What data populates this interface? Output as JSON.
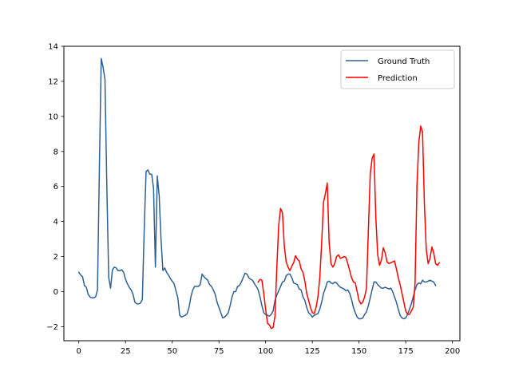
{
  "chart_data": {
    "type": "line",
    "title": "",
    "xlabel": "",
    "ylabel": "",
    "xlim": [
      -8,
      204
    ],
    "ylim": [
      -2.8,
      14
    ],
    "xticks": [
      0,
      25,
      50,
      75,
      100,
      125,
      150,
      175,
      200
    ],
    "yticks": [
      -2,
      0,
      2,
      4,
      6,
      8,
      10,
      12,
      14
    ],
    "xtick_labels": [
      "0",
      "25",
      "50",
      "75",
      "100",
      "125",
      "150",
      "175",
      "200"
    ],
    "ytick_labels": [
      "−2",
      "0",
      "2",
      "4",
      "6",
      "8",
      "10",
      "12",
      "14"
    ],
    "grid": false,
    "legend": {
      "position": "upper right"
    },
    "series": [
      {
        "name": "Ground Truth",
        "color": "#2e6193",
        "points": [
          [
            0,
            1.1
          ],
          [
            1,
            0.95
          ],
          [
            2,
            0.85
          ],
          [
            3,
            0.35
          ],
          [
            4,
            0.25
          ],
          [
            5,
            -0.15
          ],
          [
            6,
            -0.3
          ],
          [
            7,
            -0.35
          ],
          [
            8,
            -0.35
          ],
          [
            9,
            -0.3
          ],
          [
            10,
            0.1
          ],
          [
            11,
            7.0
          ],
          [
            12,
            13.3
          ],
          [
            13,
            12.8
          ],
          [
            14,
            12.1
          ],
          [
            15,
            6.0
          ],
          [
            16,
            0.8
          ],
          [
            17,
            0.2
          ],
          [
            18,
            1.25
          ],
          [
            19,
            1.4
          ],
          [
            20,
            1.35
          ],
          [
            21,
            1.2
          ],
          [
            22,
            1.2
          ],
          [
            23,
            1.25
          ],
          [
            24,
            1.1
          ],
          [
            25,
            0.7
          ],
          [
            26,
            0.45
          ],
          [
            27,
            0.25
          ],
          [
            28,
            0.1
          ],
          [
            29,
            -0.15
          ],
          [
            30,
            -0.6
          ],
          [
            31,
            -0.7
          ],
          [
            32,
            -0.7
          ],
          [
            33,
            -0.65
          ],
          [
            34,
            -0.45
          ],
          [
            35,
            3.5
          ],
          [
            36,
            6.85
          ],
          [
            37,
            6.95
          ],
          [
            38,
            6.7
          ],
          [
            39,
            6.7
          ],
          [
            40,
            5.9
          ],
          [
            41,
            1.4
          ],
          [
            42,
            6.6
          ],
          [
            43,
            5.5
          ],
          [
            44,
            3.0
          ],
          [
            45,
            1.2
          ],
          [
            46,
            1.35
          ],
          [
            47,
            1.1
          ],
          [
            48,
            0.95
          ],
          [
            49,
            0.75
          ],
          [
            50,
            0.6
          ],
          [
            51,
            0.45
          ],
          [
            52,
            0.05
          ],
          [
            53,
            -0.35
          ],
          [
            54,
            -1.35
          ],
          [
            55,
            -1.45
          ],
          [
            56,
            -1.4
          ],
          [
            57,
            -1.35
          ],
          [
            58,
            -1.25
          ],
          [
            59,
            -0.9
          ],
          [
            60,
            -0.3
          ],
          [
            61,
            0.1
          ],
          [
            62,
            0.3
          ],
          [
            63,
            0.3
          ],
          [
            64,
            0.3
          ],
          [
            65,
            0.4
          ],
          [
            66,
            1.0
          ],
          [
            67,
            0.85
          ],
          [
            68,
            0.75
          ],
          [
            69,
            0.65
          ],
          [
            70,
            0.4
          ],
          [
            71,
            0.3
          ],
          [
            72,
            0.1
          ],
          [
            73,
            -0.15
          ],
          [
            74,
            -0.6
          ],
          [
            75,
            -0.9
          ],
          [
            76,
            -1.2
          ],
          [
            77,
            -1.5
          ],
          [
            78,
            -1.45
          ],
          [
            79,
            -1.35
          ],
          [
            80,
            -1.2
          ],
          [
            81,
            -0.8
          ],
          [
            82,
            -0.3
          ],
          [
            83,
            0.0
          ],
          [
            84,
            0.0
          ],
          [
            85,
            0.3
          ],
          [
            86,
            0.35
          ],
          [
            87,
            0.55
          ],
          [
            88,
            0.8
          ],
          [
            89,
            1.05
          ],
          [
            90,
            1.0
          ],
          [
            91,
            0.8
          ],
          [
            92,
            0.7
          ],
          [
            93,
            0.65
          ],
          [
            94,
            0.45
          ],
          [
            95,
            0.3
          ],
          [
            96,
            0.1
          ],
          [
            97,
            -0.3
          ],
          [
            98,
            -0.8
          ],
          [
            99,
            -1.2
          ],
          [
            100,
            -1.3
          ],
          [
            101,
            -1.35
          ],
          [
            102,
            -1.4
          ],
          [
            103,
            -1.3
          ],
          [
            104,
            -1.1
          ],
          [
            105,
            -0.5
          ],
          [
            106,
            -0.2
          ],
          [
            107,
            0.05
          ],
          [
            108,
            0.3
          ],
          [
            109,
            0.55
          ],
          [
            110,
            0.6
          ],
          [
            111,
            0.9
          ],
          [
            112,
            1.0
          ],
          [
            113,
            1.0
          ],
          [
            114,
            0.8
          ],
          [
            115,
            0.5
          ],
          [
            116,
            0.45
          ],
          [
            117,
            0.4
          ],
          [
            118,
            0.15
          ],
          [
            119,
            0.1
          ],
          [
            120,
            -0.3
          ],
          [
            121,
            -0.5
          ],
          [
            122,
            -0.9
          ],
          [
            123,
            -1.2
          ],
          [
            124,
            -1.3
          ],
          [
            125,
            -1.45
          ],
          [
            126,
            -1.35
          ],
          [
            127,
            -1.3
          ],
          [
            128,
            -1.25
          ],
          [
            129,
            -1.0
          ],
          [
            130,
            -0.6
          ],
          [
            131,
            -0.1
          ],
          [
            132,
            0.2
          ],
          [
            133,
            0.55
          ],
          [
            134,
            0.6
          ],
          [
            135,
            0.5
          ],
          [
            136,
            0.45
          ],
          [
            137,
            0.55
          ],
          [
            138,
            0.5
          ],
          [
            139,
            0.35
          ],
          [
            140,
            0.25
          ],
          [
            141,
            0.2
          ],
          [
            142,
            0.15
          ],
          [
            143,
            0.05
          ],
          [
            144,
            0.1
          ],
          [
            145,
            -0.1
          ],
          [
            146,
            -0.45
          ],
          [
            147,
            -0.9
          ],
          [
            148,
            -1.2
          ],
          [
            149,
            -1.45
          ],
          [
            150,
            -1.55
          ],
          [
            151,
            -1.55
          ],
          [
            152,
            -1.5
          ],
          [
            153,
            -1.3
          ],
          [
            154,
            -1.15
          ],
          [
            155,
            -0.8
          ],
          [
            156,
            -0.35
          ],
          [
            157,
            0.1
          ],
          [
            158,
            0.55
          ],
          [
            159,
            0.55
          ],
          [
            160,
            0.4
          ],
          [
            161,
            0.3
          ],
          [
            162,
            0.2
          ],
          [
            163,
            0.2
          ],
          [
            164,
            0.25
          ],
          [
            165,
            0.2
          ],
          [
            166,
            0.15
          ],
          [
            167,
            0.2
          ],
          [
            168,
            0.0
          ],
          [
            169,
            -0.3
          ],
          [
            170,
            -0.6
          ],
          [
            171,
            -1.0
          ],
          [
            172,
            -1.35
          ],
          [
            173,
            -1.5
          ],
          [
            174,
            -1.55
          ],
          [
            175,
            -1.5
          ],
          [
            176,
            -1.3
          ],
          [
            177,
            -1.0
          ],
          [
            178,
            -0.7
          ],
          [
            179,
            -0.3
          ],
          [
            180,
            0.1
          ],
          [
            181,
            0.4
          ],
          [
            182,
            0.5
          ],
          [
            183,
            0.45
          ],
          [
            184,
            0.65
          ],
          [
            185,
            0.55
          ],
          [
            186,
            0.55
          ],
          [
            187,
            0.6
          ],
          [
            188,
            0.65
          ],
          [
            189,
            0.6
          ],
          [
            190,
            0.55
          ],
          [
            191,
            0.35
          ]
        ]
      },
      {
        "name": "Prediction",
        "color": "#ff0000",
        "points": [
          [
            96,
            0.55
          ],
          [
            97,
            0.7
          ],
          [
            98,
            0.65
          ],
          [
            99,
            -0.1
          ],
          [
            100,
            -1.0
          ],
          [
            101,
            -1.8
          ],
          [
            102,
            -1.9
          ],
          [
            103,
            -2.1
          ],
          [
            104,
            -2.05
          ],
          [
            105,
            -1.4
          ],
          [
            106,
            1.4
          ],
          [
            107,
            3.8
          ],
          [
            108,
            4.75
          ],
          [
            109,
            4.5
          ],
          [
            110,
            2.6
          ],
          [
            111,
            1.7
          ],
          [
            112,
            1.4
          ],
          [
            113,
            1.2
          ],
          [
            114,
            1.45
          ],
          [
            115,
            1.65
          ],
          [
            116,
            2.05
          ],
          [
            117,
            1.85
          ],
          [
            118,
            1.75
          ],
          [
            119,
            1.3
          ],
          [
            120,
            1.1
          ],
          [
            121,
            0.6
          ],
          [
            122,
            -0.1
          ],
          [
            123,
            -0.5
          ],
          [
            124,
            -0.9
          ],
          [
            125,
            -1.2
          ],
          [
            126,
            -1.25
          ],
          [
            127,
            -0.9
          ],
          [
            128,
            -0.3
          ],
          [
            129,
            0.8
          ],
          [
            130,
            2.8
          ],
          [
            131,
            5.1
          ],
          [
            132,
            5.6
          ],
          [
            133,
            6.2
          ],
          [
            134,
            2.8
          ],
          [
            135,
            1.6
          ],
          [
            136,
            1.4
          ],
          [
            137,
            1.6
          ],
          [
            138,
            2.0
          ],
          [
            139,
            2.1
          ],
          [
            140,
            1.9
          ],
          [
            141,
            1.95
          ],
          [
            142,
            2.0
          ],
          [
            143,
            1.95
          ],
          [
            144,
            1.6
          ],
          [
            145,
            1.2
          ],
          [
            146,
            0.8
          ],
          [
            147,
            0.55
          ],
          [
            148,
            0.5
          ],
          [
            149,
            0.0
          ],
          [
            150,
            -0.5
          ],
          [
            151,
            -0.7
          ],
          [
            152,
            -0.6
          ],
          [
            153,
            -0.3
          ],
          [
            154,
            0.2
          ],
          [
            155,
            3.5
          ],
          [
            156,
            6.7
          ],
          [
            157,
            7.6
          ],
          [
            158,
            7.85
          ],
          [
            159,
            4.2
          ],
          [
            160,
            2.1
          ],
          [
            161,
            1.5
          ],
          [
            162,
            1.8
          ],
          [
            163,
            2.5
          ],
          [
            164,
            2.2
          ],
          [
            165,
            1.7
          ],
          [
            166,
            1.6
          ],
          [
            167,
            1.65
          ],
          [
            168,
            1.7
          ],
          [
            169,
            1.75
          ],
          [
            170,
            1.3
          ],
          [
            171,
            0.8
          ],
          [
            172,
            0.4
          ],
          [
            173,
            -0.1
          ],
          [
            174,
            -0.6
          ],
          [
            175,
            -1.1
          ],
          [
            176,
            -1.3
          ],
          [
            177,
            -1.3
          ],
          [
            178,
            -1.1
          ],
          [
            179,
            -0.9
          ],
          [
            180,
            0.5
          ],
          [
            181,
            6.0
          ],
          [
            182,
            8.5
          ],
          [
            183,
            9.45
          ],
          [
            184,
            9.1
          ],
          [
            185,
            5.0
          ],
          [
            186,
            2.4
          ],
          [
            187,
            1.6
          ],
          [
            188,
            1.9
          ],
          [
            189,
            2.55
          ],
          [
            190,
            2.2
          ],
          [
            191,
            1.6
          ],
          [
            192,
            1.5
          ],
          [
            193,
            1.65
          ]
        ]
      }
    ]
  }
}
